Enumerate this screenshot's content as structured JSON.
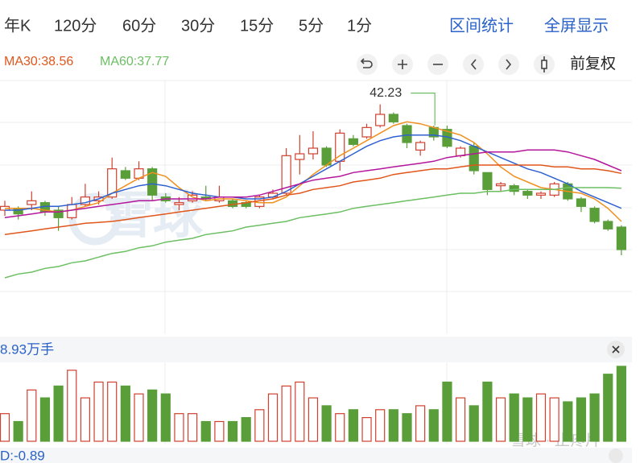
{
  "tabs": [
    "年K",
    "120分",
    "60分",
    "30分",
    "15分",
    "5分",
    "1分"
  ],
  "actions": [
    "区间统计",
    "全屏显示"
  ],
  "adjust": "前复权",
  "watermark": "雪球",
  "footer_watermark": "雪球 · 止疼片",
  "chart_data": [
    {
      "type": "candlestick",
      "ylim": [
        30,
        43.5
      ],
      "up_color": "#d0402f",
      "down_color": "#5a9e3a",
      "candles": {
        "open": [
          36.6,
          36.7,
          36.9,
          37.0,
          36.6,
          36.2,
          36.9,
          37.1,
          37.3,
          38.7,
          38.3,
          38.8,
          37.3,
          36.9,
          37.1,
          37.3,
          37.1,
          37.1,
          37.0,
          36.8,
          37.3,
          37.5,
          39.3,
          39.6,
          39.9,
          39.2,
          40.4,
          40.5,
          41.1,
          41.7,
          41.1,
          39.8,
          41.0,
          40.9,
          39.5,
          40.0,
          38.6,
          37.9,
          37.9,
          37.6,
          37.4,
          37.4,
          38.0,
          37.2,
          36.7,
          36.0,
          35.7
        ],
        "close": [
          36.8,
          36.4,
          37.1,
          36.5,
          36.2,
          36.9,
          37.3,
          37.3,
          38.8,
          38.3,
          38.8,
          37.4,
          37.1,
          37.0,
          37.4,
          37.2,
          37.3,
          36.8,
          36.8,
          37.3,
          37.5,
          39.5,
          39.6,
          39.9,
          39.0,
          40.7,
          40.1,
          41.0,
          41.7,
          41.3,
          40.2,
          40.2,
          40.5,
          40.0,
          39.9,
          38.7,
          37.7,
          38.0,
          37.6,
          37.4,
          37.5,
          38.0,
          37.2,
          36.8,
          36.0,
          35.6,
          34.5
        ],
        "high": [
          37.1,
          36.8,
          37.6,
          37.1,
          36.8,
          37.3,
          38.0,
          37.6,
          39.4,
          38.9,
          39.2,
          38.9,
          37.5,
          37.3,
          37.6,
          37.9,
          37.9,
          37.2,
          37.1,
          37.4,
          37.7,
          39.9,
          40.6,
          40.8,
          40.0,
          40.9,
          40.6,
          41.2,
          42.23,
          41.8,
          41.2,
          40.3,
          41.1,
          41.1,
          40.0,
          40.2,
          38.6,
          38.1,
          38.0,
          37.7,
          37.6,
          38.1,
          38.1,
          37.3,
          36.8,
          36.1,
          35.8
        ],
        "low": [
          36.3,
          36.1,
          36.6,
          36.3,
          35.5,
          36.1,
          36.8,
          36.9,
          37.2,
          38.2,
          38.2,
          37.1,
          37.0,
          36.6,
          37.0,
          37.1,
          37.0,
          36.7,
          36.7,
          36.7,
          37.2,
          37.4,
          38.5,
          39.3,
          38.9,
          38.7,
          40.0,
          40.4,
          41.0,
          41.2,
          39.9,
          39.5,
          40.3,
          39.9,
          39.4,
          38.5,
          37.4,
          37.6,
          37.4,
          37.2,
          37.2,
          37.3,
          37.1,
          36.5,
          35.9,
          35.5,
          34.2
        ]
      },
      "annotation": {
        "index": 28
      },
      "series": [
        {
          "color": "#f0901e",
          "values": [
            36.7,
            36.7,
            36.7,
            36.6,
            36.5,
            36.6,
            36.8,
            37.0,
            37.5,
            37.9,
            38.3,
            38.6,
            38.4,
            37.8,
            37.3,
            37.1,
            37.2,
            37.2,
            37.1,
            37.0,
            37.0,
            37.3,
            37.9,
            38.5,
            39.0,
            39.5,
            39.9,
            40.3,
            40.7,
            41.1,
            41.3,
            41.2,
            41.0,
            40.8,
            40.6,
            40.2,
            39.6,
            38.9,
            38.4,
            38.1,
            37.8,
            37.7,
            37.6,
            37.5,
            37.2,
            36.7,
            36.0
          ]
        },
        {
          "color": "#2f62d0",
          "values": [
            36.6,
            36.6,
            36.7,
            36.8,
            36.8,
            36.9,
            37.0,
            37.2,
            37.5,
            37.7,
            37.9,
            38.0,
            37.9,
            37.7,
            37.5,
            37.4,
            37.3,
            37.3,
            37.2,
            37.2,
            37.3,
            37.6,
            38.0,
            38.4,
            38.8,
            39.2,
            39.6,
            40.0,
            40.3,
            40.5,
            40.6,
            40.6,
            40.6,
            40.5,
            40.3,
            40.0,
            39.7,
            39.4,
            39.1,
            38.8,
            38.6,
            38.3,
            38.0,
            37.6,
            37.3,
            37.0,
            36.7
          ]
        },
        {
          "color": "#b4179b",
          "values": [
            36.2,
            36.3,
            36.4,
            36.5,
            36.5,
            36.6,
            36.7,
            36.8,
            36.9,
            37.0,
            37.1,
            37.1,
            37.2,
            37.2,
            37.2,
            37.2,
            37.3,
            37.3,
            37.3,
            37.4,
            37.6,
            37.8,
            38.0,
            38.2,
            38.3,
            38.4,
            38.6,
            38.7,
            38.8,
            38.9,
            39.0,
            39.1,
            39.2,
            39.4,
            39.5,
            39.6,
            39.7,
            39.7,
            39.7,
            39.8,
            39.8,
            39.8,
            39.7,
            39.5,
            39.3,
            39.0,
            38.7
          ]
        },
        {
          "name": "MA30:38.56",
          "color": "#e0561b",
          "values": [
            35.3,
            35.4,
            35.5,
            35.6,
            35.7,
            35.8,
            35.9,
            35.95,
            36.0,
            36.1,
            36.2,
            36.3,
            36.4,
            36.5,
            36.6,
            36.7,
            36.8,
            36.9,
            37.0,
            37.1,
            37.2,
            37.4,
            37.5,
            37.7,
            37.8,
            37.9,
            38.1,
            38.2,
            38.3,
            38.5,
            38.6,
            38.7,
            38.8,
            38.8,
            38.9,
            39.0,
            39.0,
            39.0,
            39.0,
            39.0,
            39.0,
            38.9,
            38.9,
            38.8,
            38.8,
            38.7,
            38.56
          ]
        },
        {
          "name": "MA60:37.77",
          "color": "#6cbf63",
          "values": [
            33.0,
            33.2,
            33.3,
            33.5,
            33.6,
            33.8,
            33.9,
            34.1,
            34.3,
            34.4,
            34.6,
            34.7,
            34.9,
            35.0,
            35.1,
            35.3,
            35.4,
            35.5,
            35.7,
            35.8,
            35.9,
            36.0,
            36.2,
            36.3,
            36.4,
            36.5,
            36.7,
            36.8,
            36.9,
            37.0,
            37.1,
            37.2,
            37.3,
            37.4,
            37.5,
            37.5,
            37.6,
            37.6,
            37.7,
            37.7,
            37.7,
            37.7,
            37.8,
            37.8,
            37.8,
            37.8,
            37.77
          ]
        }
      ]
    },
    {
      "type": "bar",
      "label": "8.93万手",
      "ylim": [
        0,
        100
      ],
      "values": [
        35,
        25,
        65,
        55,
        70,
        90,
        55,
        75,
        75,
        70,
        60,
        65,
        60,
        35,
        35,
        25,
        25,
        25,
        30,
        40,
        60,
        70,
        75,
        55,
        45,
        35,
        40,
        30,
        40,
        40,
        35,
        45,
        40,
        75,
        55,
        45,
        75,
        55,
        60,
        55,
        60,
        55,
        50,
        55,
        60,
        85,
        95
      ]
    }
  ],
  "indicator_label": "D:-0.89"
}
